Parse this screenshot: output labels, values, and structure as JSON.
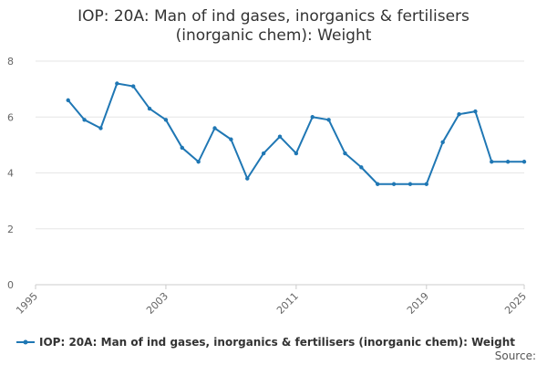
{
  "chart_data": {
    "type": "line",
    "title_line1": "IOP: 20A: Man of ind gases, inorganics & fertilisers",
    "title_line2": "(inorganic chem): Weight",
    "xlabel": "",
    "ylabel": "",
    "xlim": [
      1995,
      2025
    ],
    "ylim": [
      0,
      8
    ],
    "x_ticks": [
      "1995",
      "2003",
      "2011",
      "2019",
      "2025"
    ],
    "y_ticks": [
      "0",
      "2",
      "4",
      "6",
      "8"
    ],
    "grid": true,
    "legend_position": "bottom-left",
    "series": [
      {
        "name": "IOP: 20A: Man of ind gases, inorganics & fertilisers (inorganic chem): Weight",
        "color": "#1f77b4",
        "x": [
          1997,
          1998,
          1999,
          2000,
          2001,
          2002,
          2003,
          2004,
          2005,
          2006,
          2007,
          2008,
          2009,
          2010,
          2011,
          2012,
          2013,
          2014,
          2015,
          2016,
          2017,
          2018,
          2019,
          2020,
          2021,
          2022,
          2023,
          2024,
          2025
        ],
        "values": [
          6.6,
          5.9,
          5.6,
          7.2,
          7.1,
          6.3,
          5.9,
          4.9,
          4.4,
          5.6,
          5.2,
          3.8,
          4.7,
          5.3,
          4.7,
          6.0,
          5.9,
          4.7,
          4.2,
          3.6,
          3.6,
          3.6,
          3.6,
          5.1,
          6.1,
          6.2,
          4.4,
          4.4,
          4.4
        ]
      }
    ]
  },
  "source_label": "Source:"
}
